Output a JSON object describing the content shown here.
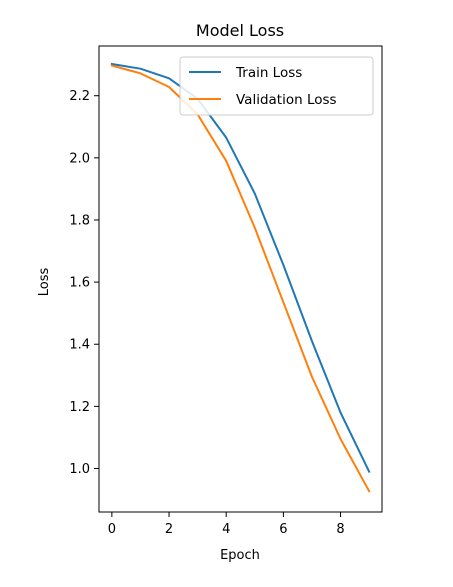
{
  "chart_data": {
    "type": "line",
    "title": "Model Loss",
    "xlabel": "Epoch",
    "ylabel": "Loss",
    "xlim": [
      -0.45,
      9.45
    ],
    "ylim": [
      0.86,
      2.36
    ],
    "xticks": [
      0,
      2,
      4,
      6,
      8
    ],
    "yticks": [
      1.0,
      1.2,
      1.4,
      1.6,
      1.8,
      2.0,
      2.2
    ],
    "xtick_labels": [
      "0",
      "2",
      "4",
      "6",
      "8"
    ],
    "ytick_labels": [
      "1.0",
      "1.2",
      "1.4",
      "1.6",
      "1.8",
      "2.0",
      "2.2"
    ],
    "grid": false,
    "legend_position": "upper-right",
    "x": [
      0,
      1,
      2,
      3,
      4,
      5,
      6,
      7,
      8,
      9
    ],
    "series": [
      {
        "name": "Train Loss",
        "color": "#1f77b4",
        "values": [
          2.302,
          2.287,
          2.256,
          2.19,
          2.065,
          1.885,
          1.655,
          1.41,
          1.18,
          0.99
        ]
      },
      {
        "name": "Validation Loss",
        "color": "#ff7f0e",
        "values": [
          2.297,
          2.272,
          2.228,
          2.14,
          1.99,
          1.775,
          1.535,
          1.295,
          1.095,
          0.927
        ]
      }
    ]
  }
}
